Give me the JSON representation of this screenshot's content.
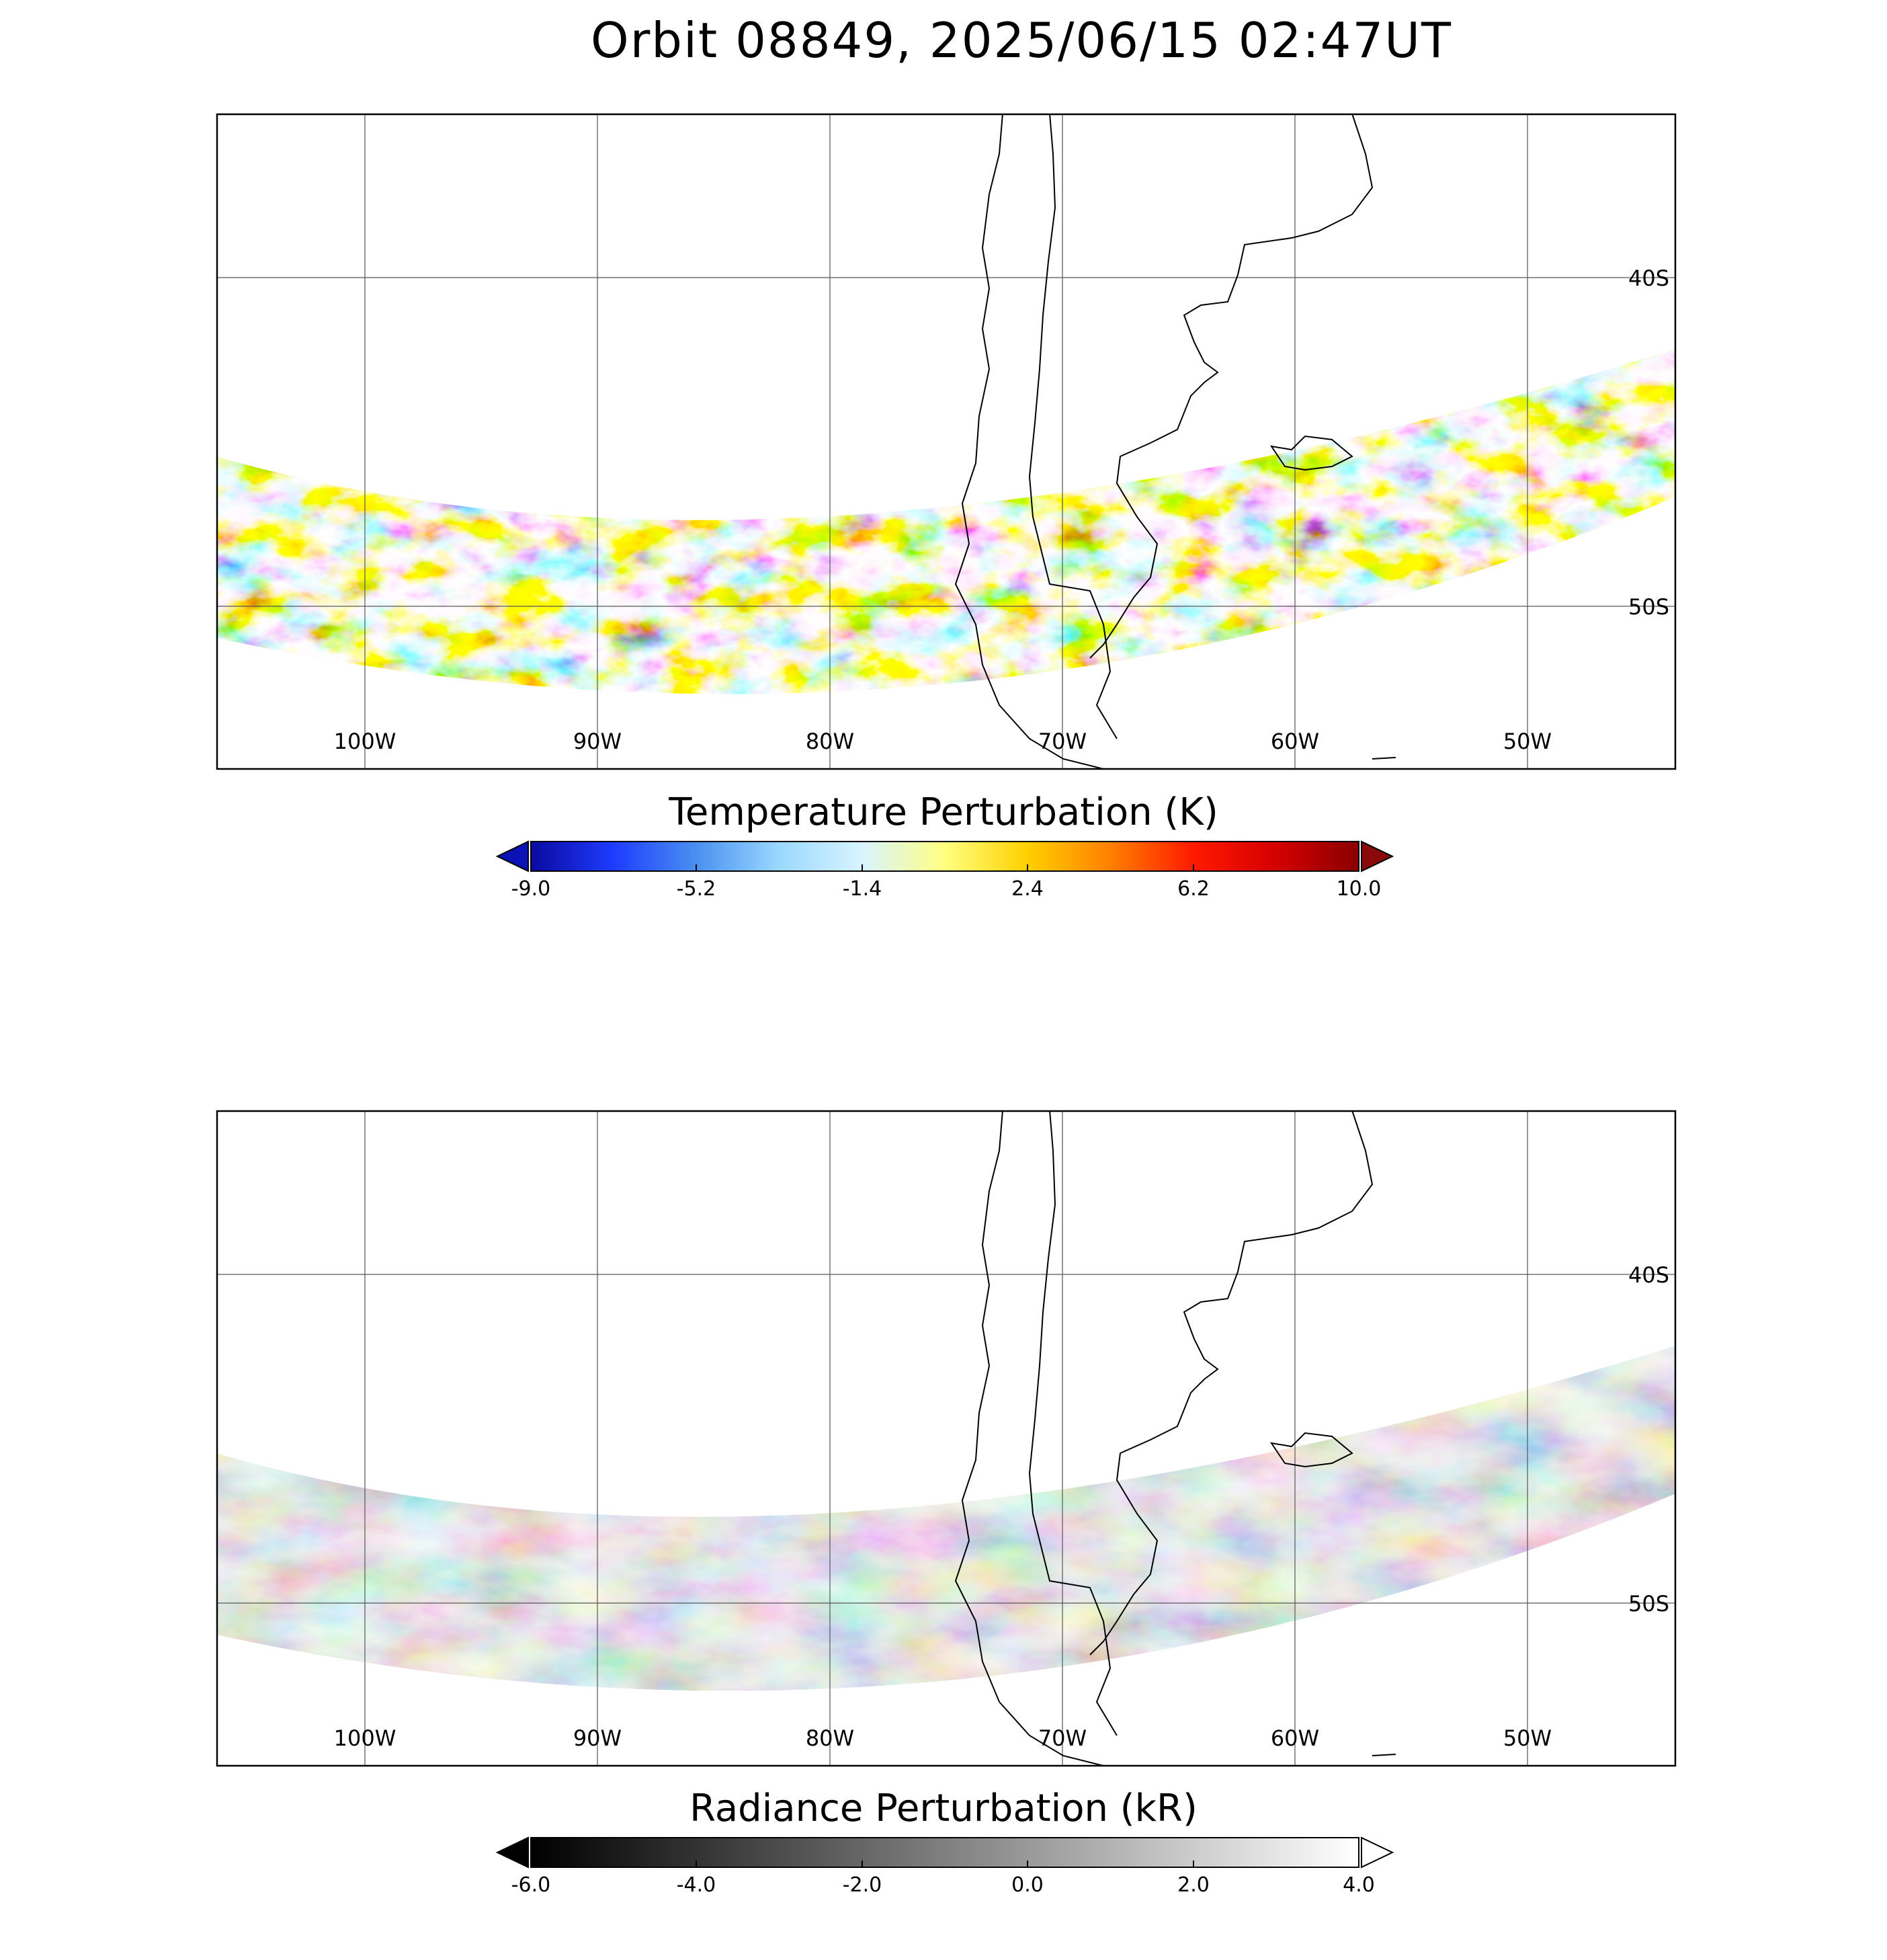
{
  "title": "Orbit 08849, 2025/06/15 02:47UT",
  "panels": [
    {
      "name": "temperature-map",
      "lon_labels": [
        "100W",
        "90W",
        "80W",
        "70W",
        "60W",
        "50W"
      ],
      "lat_labels": [
        "40S",
        "50S"
      ],
      "colorbar": {
        "title": "Temperature Perturbation (K)",
        "ticks": [
          "-9.0",
          "-5.2",
          "-1.4",
          "2.4",
          "6.2",
          "10.0"
        ],
        "colors": [
          "#0a0aa0",
          "#1e3cff",
          "#4a90f0",
          "#9ad8ff",
          "#d8f4ff",
          "#ffff80",
          "#ffd000",
          "#ff8000",
          "#ff1a00",
          "#d40000",
          "#8a0000"
        ],
        "extend_low_color": "#0a14b4",
        "extend_high_color": "#8a0a0a"
      }
    },
    {
      "name": "radiance-map",
      "lon_labels": [
        "100W",
        "90W",
        "80W",
        "70W",
        "60W",
        "50W"
      ],
      "lat_labels": [
        "40S",
        "50S"
      ],
      "colorbar": {
        "title": "Radiance Perturbation (kR)",
        "ticks": [
          "-6.0",
          "-4.0",
          "-2.0",
          "0.0",
          "2.0",
          "4.0"
        ],
        "colors": [
          "#000000",
          "#ffffff"
        ],
        "extend_low_color": "#000000",
        "extend_high_color": "#ffffff"
      }
    }
  ]
}
